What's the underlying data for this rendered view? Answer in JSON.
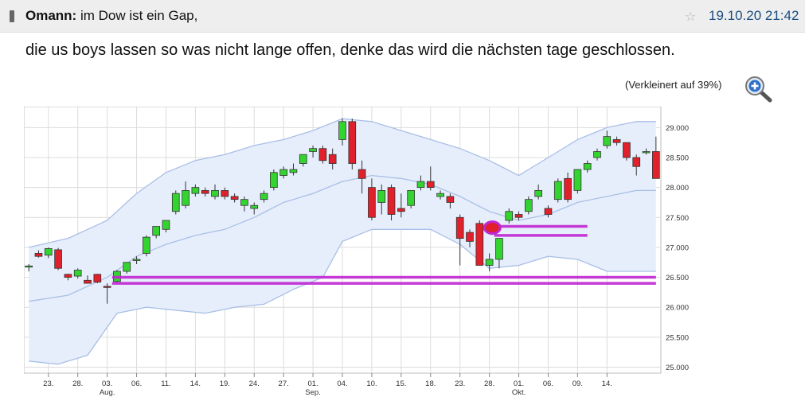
{
  "post": {
    "author": "Omann:",
    "subject": " im Dow ist ein Gap,",
    "date": "19.10.20 21:42",
    "body": "die us boys lassen so was nicht lange offen, denke das wird die nächsten tage geschlossen.",
    "resize_note": "(Verkleinert auf 39%)",
    "icons": {
      "post": "post-icon",
      "star": "star-icon",
      "zoom": "zoom-in-icon"
    }
  },
  "chart_data": {
    "type": "candlestick",
    "y_ticks": [
      "29.000",
      "28.500",
      "28.000",
      "27.500",
      "27.000",
      "26.500",
      "26.000",
      "25.500",
      "25.000"
    ],
    "y_values": [
      29000,
      28500,
      28000,
      27500,
      27000,
      26500,
      26000,
      25500,
      25000
    ],
    "ylim": [
      24900,
      29350
    ],
    "x_ticks": [
      {
        "day": "23.",
        "idx": 2
      },
      {
        "day": "28.",
        "idx": 5
      },
      {
        "day": "03.",
        "month": "Aug.",
        "idx": 8
      },
      {
        "day": "06.",
        "idx": 11
      },
      {
        "day": "11.",
        "idx": 14
      },
      {
        "day": "14.",
        "idx": 17
      },
      {
        "day": "19.",
        "idx": 20
      },
      {
        "day": "24.",
        "idx": 23
      },
      {
        "day": "27.",
        "idx": 26
      },
      {
        "day": "01.",
        "month": "Sep.",
        "idx": 29
      },
      {
        "day": "04.",
        "idx": 32
      },
      {
        "day": "10.",
        "idx": 35
      },
      {
        "day": "15.",
        "idx": 38
      },
      {
        "day": "18.",
        "idx": 41
      },
      {
        "day": "23.",
        "idx": 44
      },
      {
        "day": "28.",
        "idx": 47
      },
      {
        "day": "01.",
        "month": "Okt.",
        "idx": 50
      },
      {
        "day": "06.",
        "idx": 53
      },
      {
        "day": "09.",
        "idx": 56
      },
      {
        "day": "14.",
        "idx": 59
      }
    ],
    "candles": [
      [
        26680,
        26720,
        26600,
        26690
      ],
      [
        26900,
        26950,
        26830,
        26850
      ],
      [
        26870,
        27000,
        26820,
        26980
      ],
      [
        26960,
        26990,
        26620,
        26650
      ],
      [
        26550,
        26560,
        26450,
        26500
      ],
      [
        26520,
        26650,
        26480,
        26620
      ],
      [
        26450,
        26530,
        26400,
        26400
      ],
      [
        26550,
        26560,
        26400,
        26420
      ],
      [
        26350,
        26400,
        26060,
        26340
      ],
      [
        26430,
        26620,
        26400,
        26600
      ],
      [
        26600,
        26750,
        26560,
        26750
      ],
      [
        26800,
        26850,
        26720,
        26800
      ],
      [
        26900,
        27200,
        26850,
        27170
      ],
      [
        27200,
        27350,
        27150,
        27350
      ],
      [
        27300,
        27450,
        27250,
        27450
      ],
      [
        27600,
        27950,
        27550,
        27900
      ],
      [
        27700,
        28100,
        27650,
        27950
      ],
      [
        27900,
        28050,
        27850,
        28000
      ],
      [
        27950,
        28000,
        27850,
        27900
      ],
      [
        27850,
        28050,
        27800,
        27950
      ],
      [
        27950,
        28000,
        27800,
        27850
      ],
      [
        27850,
        27900,
        27750,
        27800
      ],
      [
        27700,
        27850,
        27600,
        27800
      ],
      [
        27650,
        27750,
        27550,
        27700
      ],
      [
        27800,
        27950,
        27750,
        27900
      ],
      [
        28000,
        28300,
        27950,
        28250
      ],
      [
        28200,
        28350,
        28150,
        28300
      ],
      [
        28250,
        28400,
        28200,
        28300
      ],
      [
        28400,
        28550,
        28350,
        28550
      ],
      [
        28600,
        28700,
        28500,
        28650
      ],
      [
        28650,
        28700,
        28400,
        28450
      ],
      [
        28550,
        28650,
        28300,
        28400
      ],
      [
        28800,
        29150,
        28700,
        29100
      ],
      [
        29100,
        29150,
        28300,
        28400
      ],
      [
        28300,
        28450,
        27900,
        28150
      ],
      [
        28000,
        28150,
        27450,
        27500
      ],
      [
        27750,
        28050,
        27550,
        27950
      ],
      [
        28000,
        28050,
        27450,
        27550
      ],
      [
        27650,
        27900,
        27500,
        27600
      ],
      [
        27700,
        27950,
        27650,
        27950
      ],
      [
        28000,
        28200,
        27950,
        28100
      ],
      [
        28100,
        28350,
        27950,
        28000
      ],
      [
        27850,
        27950,
        27800,
        27900
      ],
      [
        27850,
        27900,
        27650,
        27750
      ],
      [
        27500,
        27550,
        26700,
        27150
      ],
      [
        27250,
        27300,
        27000,
        27100
      ],
      [
        27400,
        27450,
        26700,
        26700
      ],
      [
        26700,
        26900,
        26600,
        26800
      ],
      [
        26800,
        27150,
        26650,
        27150
      ],
      [
        27450,
        27650,
        27400,
        27600
      ],
      [
        27550,
        27600,
        27450,
        27500
      ],
      [
        27600,
        27850,
        27550,
        27800
      ],
      [
        27850,
        28050,
        27800,
        27950
      ],
      [
        27650,
        27700,
        27500,
        27550
      ],
      [
        27800,
        28150,
        27750,
        28100
      ],
      [
        28150,
        28250,
        27750,
        27800
      ],
      [
        27950,
        28300,
        27900,
        28300
      ],
      [
        28300,
        28450,
        28250,
        28400
      ],
      [
        28500,
        28650,
        28450,
        28600
      ],
      [
        28700,
        28950,
        28650,
        28850
      ],
      [
        28800,
        28850,
        28700,
        28750
      ],
      [
        28750,
        28750,
        28450,
        28500
      ],
      [
        28500,
        28550,
        28200,
        28350
      ],
      [
        28600,
        28650,
        28550,
        28600
      ],
      [
        28600,
        28850,
        28150,
        28150
      ]
    ],
    "upper_band": [
      [
        0,
        27000
      ],
      [
        4,
        27150
      ],
      [
        8,
        27450
      ],
      [
        11,
        27900
      ],
      [
        14,
        28250
      ],
      [
        17,
        28450
      ],
      [
        20,
        28550
      ],
      [
        23,
        28700
      ],
      [
        26,
        28800
      ],
      [
        29,
        28950
      ],
      [
        32,
        29150
      ],
      [
        35,
        29100
      ],
      [
        38,
        28950
      ],
      [
        41,
        28800
      ],
      [
        44,
        28650
      ],
      [
        47,
        28450
      ],
      [
        50,
        28200
      ],
      [
        53,
        28500
      ],
      [
        56,
        28800
      ],
      [
        59,
        29000
      ],
      [
        62,
        29100
      ]
    ],
    "lower_band": [
      [
        0,
        25100
      ],
      [
        3,
        25050
      ],
      [
        6,
        25200
      ],
      [
        9,
        25900
      ],
      [
        12,
        26000
      ],
      [
        15,
        25950
      ],
      [
        18,
        25900
      ],
      [
        21,
        26000
      ],
      [
        24,
        26050
      ],
      [
        27,
        26300
      ],
      [
        30,
        26500
      ],
      [
        32,
        27100
      ],
      [
        35,
        27300
      ],
      [
        38,
        27300
      ],
      [
        41,
        27300
      ],
      [
        44,
        27050
      ],
      [
        47,
        26650
      ],
      [
        50,
        26700
      ],
      [
        53,
        26850
      ],
      [
        56,
        26800
      ],
      [
        59,
        26600
      ],
      [
        62,
        26600
      ]
    ],
    "middle_band": [
      [
        0,
        26100
      ],
      [
        4,
        26200
      ],
      [
        8,
        26500
      ],
      [
        11,
        26850
      ],
      [
        14,
        27050
      ],
      [
        17,
        27200
      ],
      [
        20,
        27300
      ],
      [
        23,
        27500
      ],
      [
        26,
        27750
      ],
      [
        29,
        27900
      ],
      [
        32,
        28100
      ],
      [
        35,
        28200
      ],
      [
        38,
        28150
      ],
      [
        41,
        28050
      ],
      [
        44,
        27850
      ],
      [
        47,
        27600
      ],
      [
        50,
        27450
      ],
      [
        53,
        27550
      ],
      [
        56,
        27750
      ],
      [
        59,
        27850
      ],
      [
        62,
        27950
      ]
    ],
    "annotations": [
      {
        "type": "hline",
        "y": 26500,
        "x0": 8.5,
        "x1": 64,
        "color": "#c026d3"
      },
      {
        "type": "hline",
        "y": 26400,
        "x0": 8.5,
        "x1": 64,
        "color": "#c026d3"
      },
      {
        "type": "hline",
        "y": 27350,
        "x0": 47.5,
        "x1": 57,
        "color": "#c026d3"
      },
      {
        "type": "hline",
        "y": 27200,
        "x0": 47.5,
        "x1": 57,
        "color": "#c026d3"
      },
      {
        "type": "marker",
        "x": 47.3,
        "y": 27330,
        "color": "#c026d3"
      }
    ],
    "colors": {
      "up": "#33d42f",
      "down": "#e0202a",
      "band_fill": "#e6eefb",
      "band_line": "#a9bfe6",
      "grid": "#dcdcdc"
    }
  }
}
